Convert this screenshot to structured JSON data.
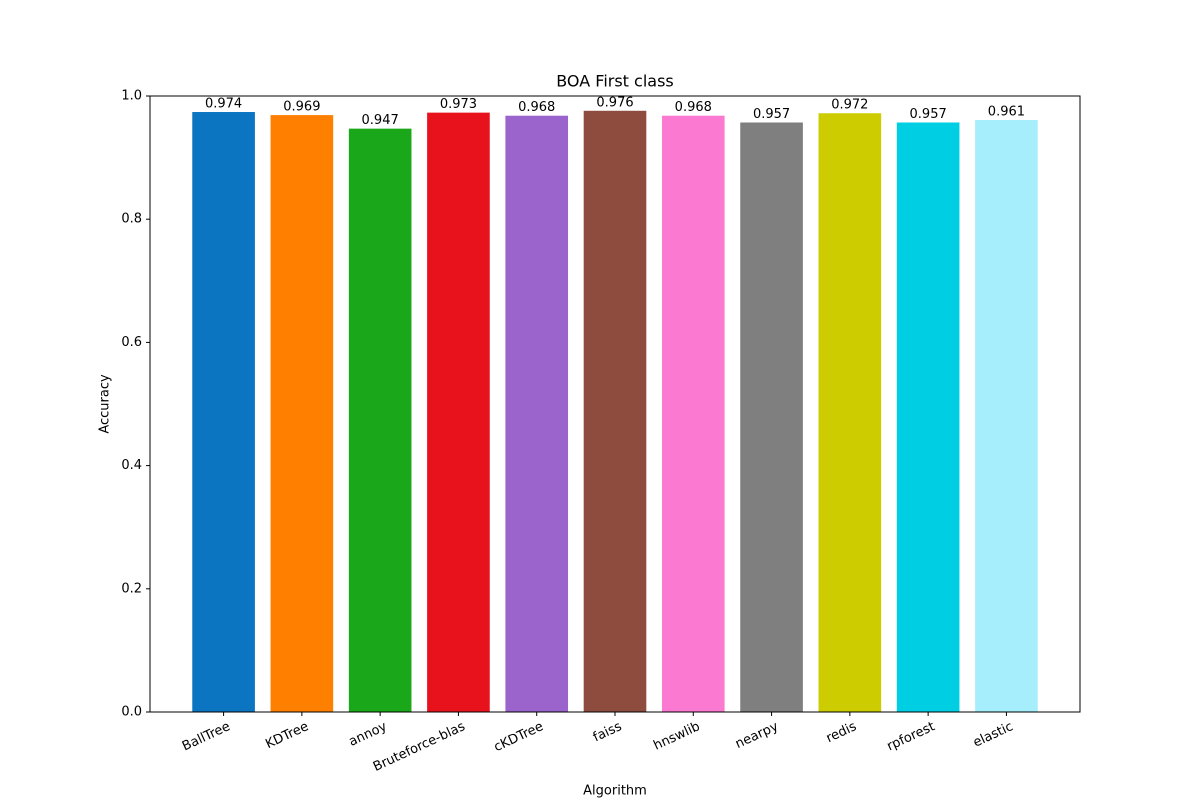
{
  "chart_data": {
    "type": "bar",
    "title": "BOA First class",
    "x_label": "Algorithm",
    "y_label": "Accuracy",
    "categories": [
      "BallTree",
      "KDTree",
      "annoy",
      "Bruteforce-blas",
      "cKDTree",
      "faiss",
      "hnswlib",
      "nearpy",
      "redis",
      "rpforest",
      "elastic"
    ],
    "values": [
      0.974,
      0.969,
      0.947,
      0.973,
      0.968,
      0.976,
      0.968,
      0.957,
      0.972,
      0.957,
      0.961
    ],
    "colors": [
      "#0b75c1",
      "#ff8000",
      "#1aa81a",
      "#e8121c",
      "#9b64cc",
      "#8e4c3f",
      "#fb79d1",
      "#7f7f7f",
      "#cccc00",
      "#00cfe3",
      "#a6eefb"
    ],
    "ylim": [
      0,
      1
    ],
    "yticks": [
      {
        "value": 0,
        "label": "0.0"
      },
      0.2,
      0.4,
      0.6,
      0.8,
      {
        "value": 1,
        "label": "1.0"
      }
    ],
    "grid": false
  }
}
